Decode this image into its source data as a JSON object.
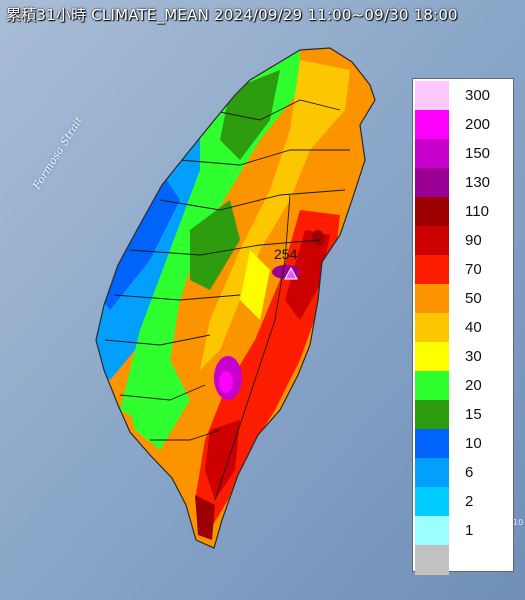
{
  "title": "累積31小時 CLIMATE_MEAN 2024/09/29 11:00~09/30 18:00",
  "strait_label": "Formosa Strait",
  "max_value": "254",
  "edge_label": "10",
  "legend": [
    {
      "label": "300",
      "color": "#fdc8fb"
    },
    {
      "label": "200",
      "color": "#fb00fa"
    },
    {
      "label": "150",
      "color": "#c800cc"
    },
    {
      "label": "130",
      "color": "#9a0096"
    },
    {
      "label": "110",
      "color": "#9c0000"
    },
    {
      "label": "90",
      "color": "#cc0000"
    },
    {
      "label": "70",
      "color": "#fc1d00"
    },
    {
      "label": "50",
      "color": "#fc9400"
    },
    {
      "label": "40",
      "color": "#fcc700"
    },
    {
      "label": "30",
      "color": "#fefe00"
    },
    {
      "label": "20",
      "color": "#2ffe2f"
    },
    {
      "label": "15",
      "color": "#2d9c0e"
    },
    {
      "label": "10",
      "color": "#0063fc"
    },
    {
      "label": "6",
      "color": "#029ffc"
    },
    {
      "label": "2",
      "color": "#00cdfd"
    },
    {
      "label": "1",
      "color": "#9afffe"
    },
    {
      "label": "",
      "color": "#c1c1c1"
    }
  ]
}
